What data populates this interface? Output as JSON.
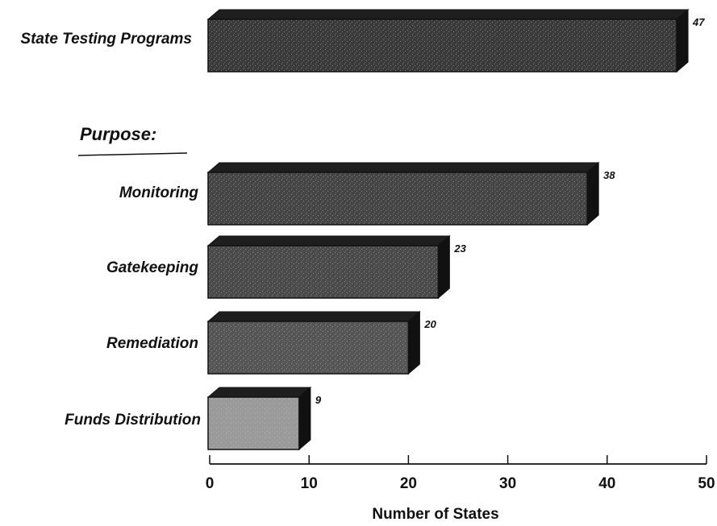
{
  "chart_data": {
    "type": "bar",
    "orientation": "horizontal",
    "style": "3d",
    "section_label": "Purpose:",
    "categories": [
      "State Testing Programs",
      "Monitoring",
      "Gatekeeping",
      "Remediation",
      "Funds Distribution"
    ],
    "values": [
      47,
      38,
      23,
      20,
      9
    ],
    "value_labels": [
      "47",
      "38",
      "23",
      "20",
      "9"
    ],
    "xlabel": "Number of States",
    "xlim": [
      0,
      50
    ],
    "xticks": [
      0,
      10,
      20,
      30,
      40,
      50
    ],
    "xtick_labels": [
      "0",
      "10",
      "20",
      "30",
      "40",
      "50"
    ],
    "grid": false,
    "legend": "none",
    "colors": {
      "bar_front": [
        "#3a3a3a",
        "#454545",
        "#4a4a4a",
        "#555555",
        "#9a9a9a"
      ],
      "bar_top": "#1e1e1e",
      "bar_side": "#111111",
      "ink": "#111111"
    }
  }
}
